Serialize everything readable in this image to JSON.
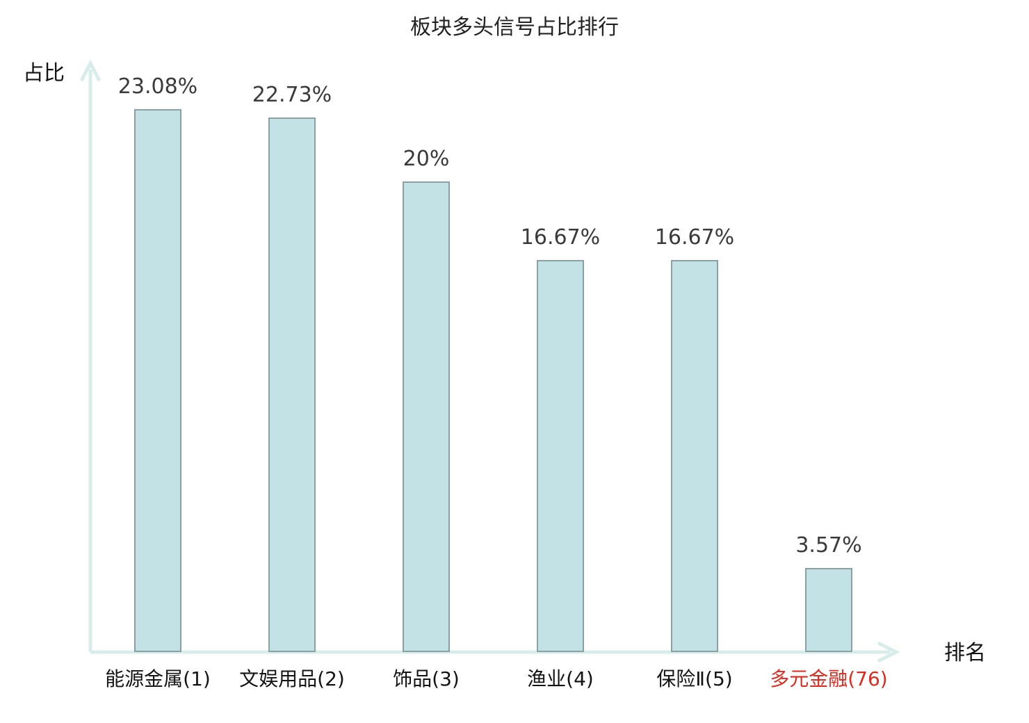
{
  "chart_data": {
    "type": "bar",
    "title": "板块多头信号占比排行",
    "xlabel": "排名",
    "ylabel": "占比",
    "categories": [
      "能源金属(1)",
      "文娱用品(2)",
      "饰品(3)",
      "渔业(4)",
      "保险Ⅱ(5)",
      "多元金融(76)"
    ],
    "values": [
      23.08,
      22.73,
      20,
      16.67,
      16.67,
      3.57
    ],
    "value_labels": [
      "23.08%",
      "22.73%",
      "20%",
      "16.67%",
      "16.67%",
      "3.57%"
    ],
    "highlight_index": 5,
    "ylim": [
      0,
      25
    ],
    "grid": false,
    "legend": "none"
  },
  "colors": {
    "background": "#ffffff",
    "bar_fill": "#c3e2e5",
    "bar_border": "#8aa0a3",
    "axis": "#d8ecea",
    "title": "#222222",
    "value_label": "#3a3a3a",
    "category_label": "#141414",
    "highlight": "#dd2a1e"
  }
}
